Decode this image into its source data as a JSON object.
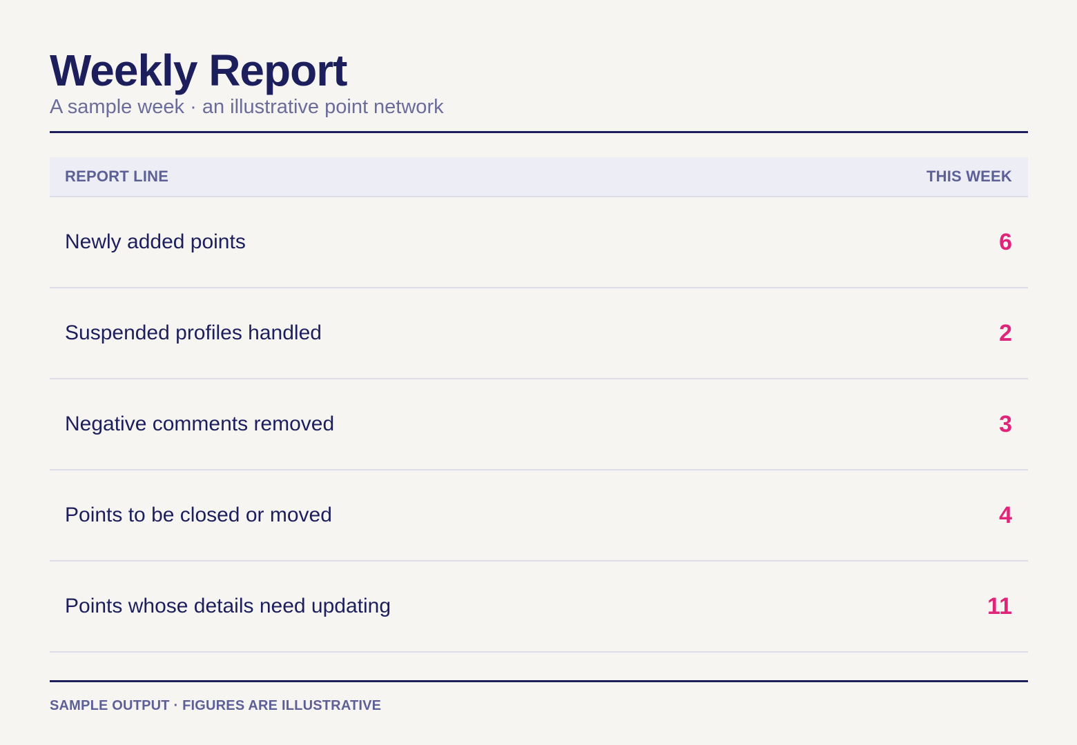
{
  "header": {
    "title": "Weekly Report",
    "subtitle": "A sample week · an illustrative point network"
  },
  "table": {
    "columns": [
      "REPORT LINE",
      "THIS WEEK"
    ],
    "rows": [
      {
        "label": "Newly added points",
        "value": "6"
      },
      {
        "label": "Suspended profiles handled",
        "value": "2"
      },
      {
        "label": "Negative comments removed",
        "value": "3"
      },
      {
        "label": "Points to be closed or moved",
        "value": "4"
      },
      {
        "label": "Points whose details need updating",
        "value": "11"
      }
    ]
  },
  "footer": {
    "note": "SAMPLE OUTPUT · FIGURES ARE ILLUSTRATIVE"
  },
  "colors": {
    "primary": "#1c1f5c",
    "accent": "#e0247a",
    "muted": "#5d6096",
    "background": "#f6f5f2",
    "header_band": "#ecedf5"
  }
}
